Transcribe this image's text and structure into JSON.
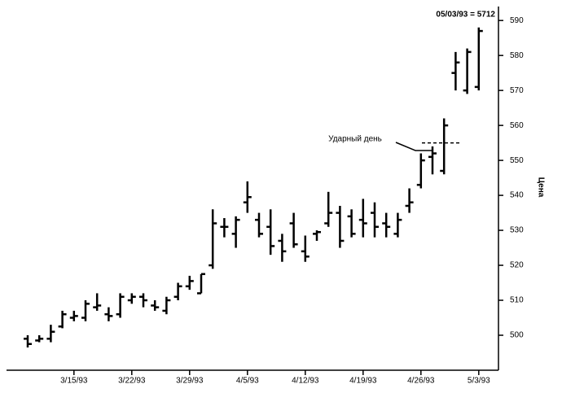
{
  "chart_data": {
    "type": "ohlc",
    "subtitle": "05/03/93 = 5712",
    "ylabel": "Цена",
    "annotation": "Ударный день",
    "hline": 555,
    "categories": [
      null,
      null,
      null,
      null,
      "3/15/93",
      null,
      null,
      null,
      null,
      "3/22/93",
      null,
      null,
      null,
      null,
      "3/29/93",
      null,
      null,
      null,
      null,
      "4/5/93",
      null,
      null,
      null,
      null,
      "4/12/93",
      null,
      null,
      null,
      null,
      "4/19/93",
      null,
      null,
      null,
      null,
      "4/26/93",
      null,
      null,
      null,
      null,
      "5/3/93"
    ],
    "open": [
      499,
      498.5,
      499,
      502.5,
      505,
      505,
      508,
      506,
      506,
      510,
      511,
      508.5,
      507,
      511,
      514,
      512,
      520,
      531,
      529,
      538,
      533,
      531,
      527,
      532,
      524,
      529,
      532,
      535,
      534,
      533,
      535,
      532,
      529,
      537,
      543,
      551,
      547,
      575,
      570,
      571
    ],
    "high": [
      500,
      500,
      503,
      507,
      507,
      510,
      512,
      508,
      512,
      512,
      512,
      510,
      511,
      515,
      517,
      517.5,
      536,
      533.5,
      534,
      544,
      535,
      536,
      529,
      535,
      528.5,
      530,
      541,
      537,
      536,
      539,
      538,
      535,
      535,
      542,
      552,
      554,
      562,
      581,
      582,
      588
    ],
    "low": [
      496.5,
      498,
      498,
      502,
      504,
      504,
      507,
      504,
      505,
      509,
      508,
      507,
      506,
      510,
      513,
      512,
      519,
      528,
      525,
      535,
      528,
      523,
      521,
      525,
      521,
      527,
      531,
      525,
      528,
      528,
      528,
      528,
      528,
      535,
      542,
      546,
      546,
      570,
      569,
      570
    ],
    "close": [
      497.5,
      499,
      501,
      506,
      505.5,
      509,
      508.5,
      505.5,
      511,
      511,
      510,
      508,
      510,
      514,
      515.5,
      517.5,
      532,
      531,
      533,
      539.5,
      529,
      525.5,
      524,
      526,
      522.5,
      529.5,
      535,
      527,
      529,
      532,
      531,
      531,
      533,
      538,
      550,
      552,
      560,
      578,
      581,
      587
    ],
    "color": "#000000",
    "ylim": [
      490,
      594
    ],
    "yticks": [
      500,
      510,
      520,
      530,
      540,
      550,
      560,
      570,
      580,
      590
    ]
  }
}
